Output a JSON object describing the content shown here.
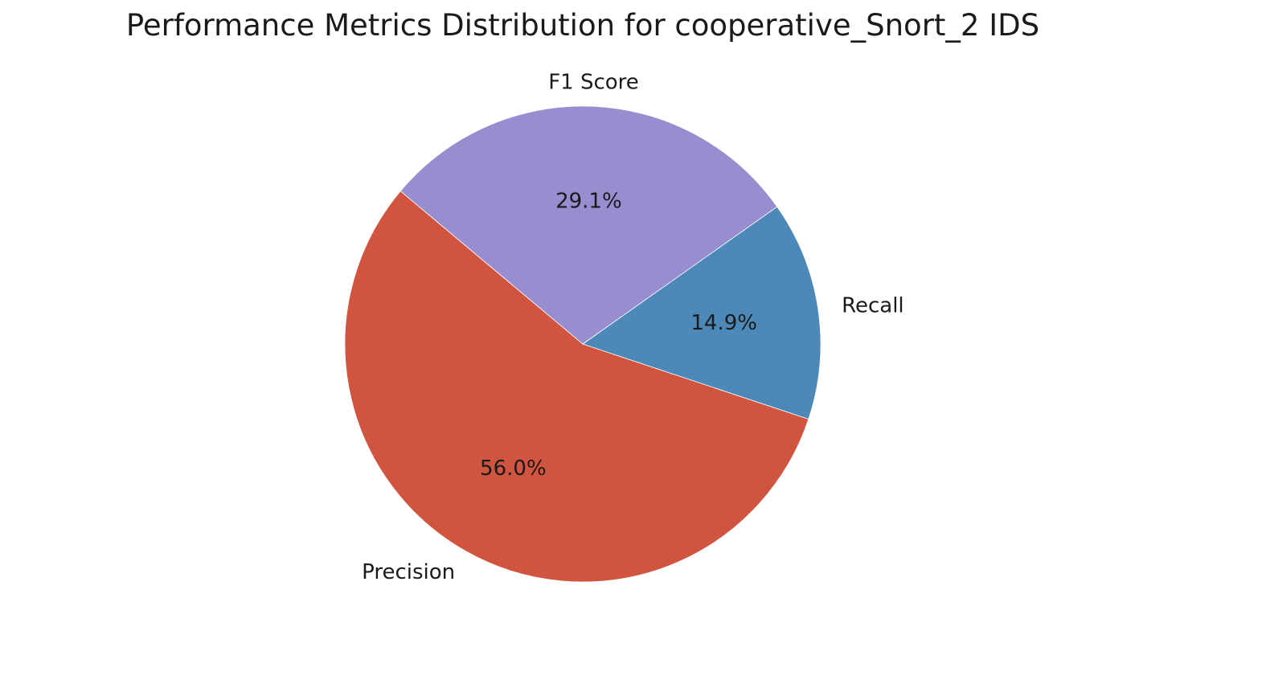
{
  "chart_data": {
    "type": "pie",
    "title": "Performance Metrics Distribution for  cooperative_Snort_2 IDS",
    "categories": [
      "Precision",
      "Recall",
      "F1 Score"
    ],
    "values": [
      56.0,
      14.9,
      29.1
    ],
    "value_labels": [
      "56.0%",
      "14.9%",
      "29.1%"
    ],
    "colors": [
      "#d1543f",
      "#4c88b8",
      "#978dcf"
    ],
    "start_angle_deg": 140,
    "direction": "counterclockwise",
    "legend": "none"
  }
}
